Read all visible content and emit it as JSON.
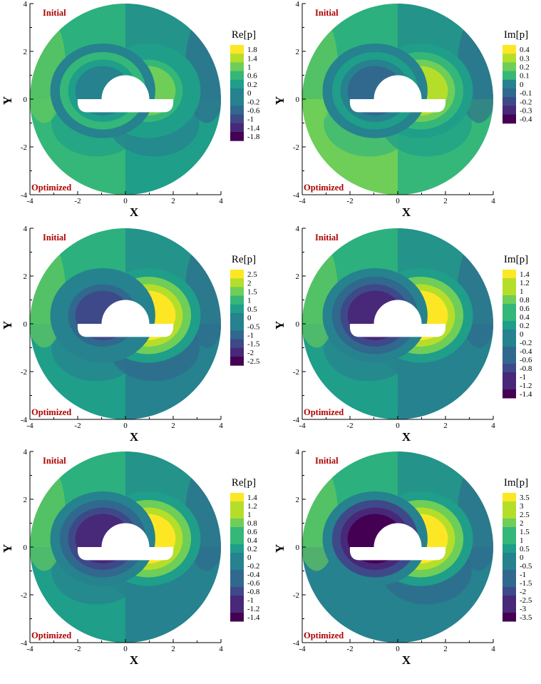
{
  "figure": {
    "panels": [
      {
        "id": "r1c1",
        "row": 0,
        "col": 0,
        "cbar_title": "Re[p]",
        "levels": [
          "1.8",
          "1.4",
          "1",
          "0.6",
          "0.2",
          "0",
          "-0.2",
          "-0.6",
          "-1",
          "-1.4",
          "-1.8"
        ],
        "label_top": "Initial",
        "label_bottom": "Optimized",
        "xlabel": "X",
        "ylabel": "Y",
        "xticks": [
          "-4",
          "-2",
          "0",
          "2",
          "4"
        ],
        "yticks": [
          "4",
          "2",
          "0",
          "-2",
          "-4"
        ]
      },
      {
        "id": "r1c2",
        "row": 0,
        "col": 1,
        "cbar_title": "Im[p]",
        "levels": [
          "0.4",
          "0.3",
          "0.2",
          "0.1",
          "0",
          "-0.1",
          "-0.2",
          "-0.3",
          "-0.4"
        ],
        "label_top": "Initial",
        "label_bottom": "Optimized",
        "xlabel": "X",
        "ylabel": "Y",
        "xticks": [
          "-4",
          "-2",
          "0",
          "2",
          "4"
        ],
        "yticks": [
          "4",
          "2",
          "0",
          "-2",
          "-4"
        ]
      },
      {
        "id": "r2c1",
        "row": 1,
        "col": 0,
        "cbar_title": "Re[p]",
        "levels": [
          "2.5",
          "2",
          "1.5",
          "1",
          "0.5",
          "0",
          "-0.5",
          "-1",
          "-1.5",
          "-2",
          "-2.5"
        ],
        "label_top": "Initial",
        "label_bottom": "Optimized",
        "xlabel": "X",
        "ylabel": "Y",
        "xticks": [
          "-4",
          "-2",
          "0",
          "2",
          "4"
        ],
        "yticks": [
          "4",
          "2",
          "0",
          "-2",
          "-4"
        ]
      },
      {
        "id": "r2c2",
        "row": 1,
        "col": 1,
        "cbar_title": "Im[p]",
        "levels": [
          "1.4",
          "1.2",
          "1",
          "0.8",
          "0.6",
          "0.4",
          "0.2",
          "0",
          "-0.2",
          "-0.4",
          "-0.6",
          "-0.8",
          "-1",
          "-1.2",
          "-1.4"
        ],
        "label_top": "Initial",
        "label_bottom": "Optimized",
        "xlabel": "X",
        "ylabel": "Y",
        "xticks": [
          "-4",
          "-2",
          "0",
          "2",
          "4"
        ],
        "yticks": [
          "4",
          "2",
          "0",
          "-2",
          "-4"
        ]
      },
      {
        "id": "r3c1",
        "row": 2,
        "col": 0,
        "cbar_title": "Re[p]",
        "levels": [
          "1.4",
          "1.2",
          "1",
          "0.8",
          "0.6",
          "0.4",
          "0.2",
          "0",
          "-0.2",
          "-0.4",
          "-0.6",
          "-0.8",
          "-1",
          "-1.2",
          "-1.4"
        ],
        "label_top": "Initial",
        "label_bottom": "Optimized",
        "xlabel": "X",
        "ylabel": "Y",
        "xticks": [
          "-4",
          "-2",
          "0",
          "2",
          "4"
        ],
        "yticks": [
          "4",
          "2",
          "0",
          "-2",
          "-4"
        ]
      },
      {
        "id": "r3c2",
        "row": 2,
        "col": 1,
        "cbar_title": "Im[p]",
        "levels": [
          "3.5",
          "3",
          "2.5",
          "2",
          "1.5",
          "1",
          "0.5",
          "0",
          "-0.5",
          "-1",
          "-1.5",
          "-2",
          "-2.5",
          "-3",
          "-3.5"
        ],
        "label_top": "Initial",
        "label_bottom": "Optimized",
        "xlabel": "X",
        "ylabel": "Y",
        "xticks": [
          "-4",
          "-2",
          "0",
          "2",
          "4"
        ],
        "yticks": [
          "4",
          "2",
          "0",
          "-2",
          "-4"
        ]
      }
    ],
    "colors": {
      "label": "#b00000",
      "palette": [
        "#fde725",
        "#b5de2b",
        "#6ece58",
        "#35b779",
        "#1f9e89",
        "#26828e",
        "#31688e",
        "#3e4989",
        "#482878",
        "#440154"
      ],
      "background_level": "#22a884"
    }
  },
  "chart_data": [
    {
      "type": "heatmap",
      "title": "",
      "xlabel": "X",
      "ylabel": "Y",
      "xlim": [
        -4,
        4
      ],
      "ylim": [
        -4,
        4
      ],
      "colorbar_title": "Re[p]",
      "colorbar_range": [
        -1.8,
        1.8
      ],
      "colorbar_levels": [
        1.8,
        1.4,
        1,
        0.6,
        0.2,
        0,
        -0.2,
        -0.6,
        -1,
        -1.4,
        -1.8
      ],
      "annotations": [
        "Initial",
        "Optimized"
      ],
      "extrema": {
        "upper_max_near": [
          1.0,
          0.5
        ],
        "upper_min_near": [
          -1.0,
          0.5
        ]
      }
    },
    {
      "type": "heatmap",
      "title": "",
      "xlabel": "X",
      "ylabel": "Y",
      "xlim": [
        -4,
        4
      ],
      "ylim": [
        -4,
        4
      ],
      "colorbar_title": "Im[p]",
      "colorbar_range": [
        -0.4,
        0.4
      ],
      "colorbar_levels": [
        0.4,
        0.3,
        0.2,
        0.1,
        0,
        -0.1,
        -0.2,
        -0.3,
        -0.4
      ],
      "annotations": [
        "Initial",
        "Optimized"
      ],
      "extrema": {
        "upper_max_near": [
          -1.8,
          1.0
        ],
        "upper_min_near": [
          1.8,
          1.0
        ]
      }
    },
    {
      "type": "heatmap",
      "title": "",
      "xlabel": "X",
      "ylabel": "Y",
      "xlim": [
        -4,
        4
      ],
      "ylim": [
        -4,
        4
      ],
      "colorbar_title": "Re[p]",
      "colorbar_range": [
        -2.5,
        2.5
      ],
      "colorbar_levels": [
        2.5,
        2,
        1.5,
        1,
        0.5,
        0,
        -0.5,
        -1,
        -1.5,
        -2,
        -2.5
      ],
      "annotations": [
        "Initial",
        "Optimized"
      ],
      "extrema": {
        "upper_max_near": [
          1.0,
          0.2
        ],
        "upper_min_near": [
          -1.0,
          0.2
        ]
      }
    },
    {
      "type": "heatmap",
      "title": "",
      "xlabel": "X",
      "ylabel": "Y",
      "xlim": [
        -4,
        4
      ],
      "ylim": [
        -4,
        4
      ],
      "colorbar_title": "Im[p]",
      "colorbar_range": [
        -1.4,
        1.4
      ],
      "colorbar_levels": [
        1.4,
        1.2,
        1,
        0.8,
        0.6,
        0.4,
        0.2,
        0,
        -0.2,
        -0.4,
        -0.6,
        -0.8,
        -1,
        -1.2,
        -1.4
      ],
      "annotations": [
        "Initial",
        "Optimized"
      ],
      "extrema": {
        "upper_max_near": [
          1.0,
          0.2
        ],
        "upper_min_near": [
          -1.0,
          0.2
        ]
      }
    },
    {
      "type": "heatmap",
      "title": "",
      "xlabel": "X",
      "ylabel": "Y",
      "xlim": [
        -4,
        4
      ],
      "ylim": [
        -4,
        4
      ],
      "colorbar_title": "Re[p]",
      "colorbar_range": [
        -1.4,
        1.4
      ],
      "colorbar_levels": [
        1.4,
        1.2,
        1,
        0.8,
        0.6,
        0.4,
        0.2,
        0,
        -0.2,
        -0.4,
        -0.6,
        -0.8,
        -1,
        -1.2,
        -1.4
      ],
      "annotations": [
        "Initial",
        "Optimized"
      ],
      "extrema": {
        "upper_max_near": [
          1.0,
          0.2
        ],
        "upper_min_near": [
          -1.0,
          0.2
        ]
      }
    },
    {
      "type": "heatmap",
      "title": "",
      "xlabel": "X",
      "ylabel": "Y",
      "xlim": [
        -4,
        4
      ],
      "ylim": [
        -4,
        4
      ],
      "colorbar_title": "Im[p]",
      "colorbar_range": [
        -3.5,
        3.5
      ],
      "colorbar_levels": [
        3.5,
        3,
        2.5,
        2,
        1.5,
        1,
        0.5,
        0,
        -0.5,
        -1,
        -1.5,
        -2,
        -2.5,
        -3,
        -3.5
      ],
      "annotations": [
        "Initial",
        "Optimized"
      ],
      "extrema": {
        "upper_max_near": [
          1.0,
          0.2
        ],
        "upper_min_near": [
          -1.0,
          0.2
        ]
      }
    }
  ]
}
